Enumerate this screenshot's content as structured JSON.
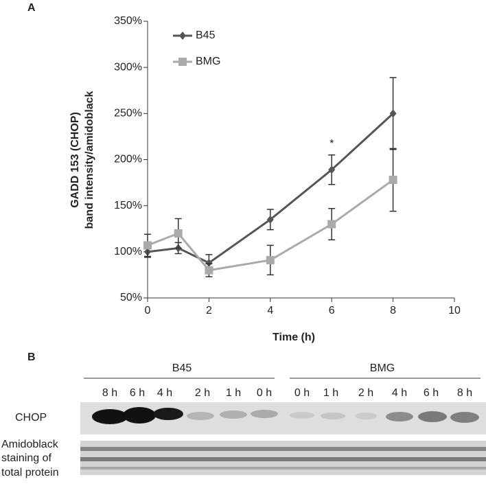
{
  "chart_data": {
    "type": "line",
    "panel_label": "A",
    "xlabel": "Time (h)",
    "ylabel": [
      "GADD 153 (CHOP)",
      "band intensity/amidoblack"
    ],
    "x": [
      0,
      1,
      2,
      4,
      6,
      8
    ],
    "series": [
      {
        "name": "B45",
        "color": "#555555",
        "marker": "diamond",
        "values": [
          100,
          104,
          88,
          135,
          189,
          250
        ],
        "errors": [
          6,
          6,
          9,
          11,
          16,
          39
        ]
      },
      {
        "name": "BMG",
        "color": "#aaaaaa",
        "marker": "square",
        "values": [
          107,
          120,
          80,
          91,
          130,
          178
        ],
        "errors": [
          12,
          16,
          7,
          16,
          17,
          34
        ]
      }
    ],
    "annotations": [
      {
        "text": "*",
        "x": 6,
        "series": "B45"
      }
    ],
    "xlim": [
      0,
      10
    ],
    "xticks": [
      0,
      2,
      4,
      6,
      8,
      10
    ],
    "ylim": [
      50,
      350
    ],
    "yticks": [
      {
        "value": 50,
        "label": "50%"
      },
      {
        "value": 100,
        "label": "100%"
      },
      {
        "value": 150,
        "label": "150%"
      },
      {
        "value": 200,
        "label": "200%"
      },
      {
        "value": 250,
        "label": "250%"
      },
      {
        "value": 300,
        "label": "300%"
      },
      {
        "value": 350,
        "label": "350%"
      }
    ],
    "legend": "upper left",
    "grid": false
  },
  "panel_b": {
    "panel_label": "B",
    "groups": [
      {
        "label": "B45",
        "lanes": [
          "8 h",
          "6 h",
          "4 h",
          "2 h",
          "1 h",
          "0 h"
        ]
      },
      {
        "label": "BMG",
        "lanes": [
          "0 h",
          "1 h",
          "2 h",
          "4 h",
          "6 h",
          "8 h"
        ]
      }
    ],
    "rows": [
      [
        "CHOP"
      ],
      [
        "Amidoblack",
        "staining of",
        "total protein"
      ]
    ]
  }
}
